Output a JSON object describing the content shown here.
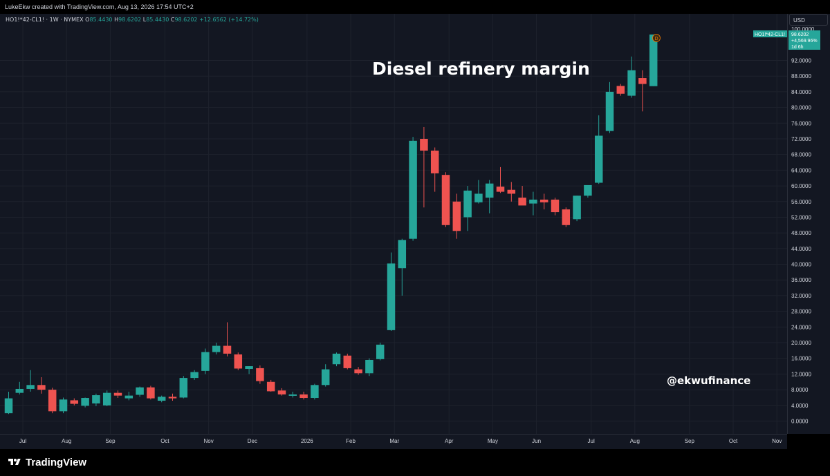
{
  "header": {
    "attribution": "LukeEkw created with TradingView.com, Aug 13, 2026 17:54 UTC+2"
  },
  "legend": {
    "symbol": "HO1!*42-CL1! · 1W · NYMEX",
    "o_label": "O",
    "o_value": "85.4430",
    "h_label": "H",
    "h_value": "98.6202",
    "l_label": "L",
    "l_value": "85.4430",
    "c_label": "C",
    "c_value": "98.6202",
    "change": "+12.6562 (+14.72%)"
  },
  "price_scale": {
    "currency": "USD",
    "last_symbol": "HO1!*42-CL1!",
    "last_price": "98.6202",
    "last_change": "+4,569.96%",
    "countdown": "1d 6h"
  },
  "annotations": {
    "title": "Diesel refinery margin",
    "handle": "@ekwufinance",
    "dividend_marker": "D"
  },
  "footer": {
    "brand": "TradingView"
  },
  "colors": {
    "up": "#26a69a",
    "down": "#ef5350",
    "background": "#131722",
    "grid": "#1e222d"
  },
  "chart_data": {
    "type": "candlestick",
    "title": "Diesel refinery margin",
    "interval": "1W",
    "ylim": [
      -1,
      100
    ],
    "y_ticks": [
      0,
      4,
      8,
      12,
      16,
      20,
      24,
      28,
      32,
      36,
      40,
      44,
      48,
      52,
      56,
      60,
      64,
      68,
      72,
      76,
      80,
      84,
      88,
      92,
      100
    ],
    "y_tick_labels": [
      "0.0000",
      "4.0000",
      "8.0000",
      "12.0000",
      "16.0000",
      "20.0000",
      "24.0000",
      "28.0000",
      "32.0000",
      "36.0000",
      "40.0000",
      "44.0000",
      "48.0000",
      "52.0000",
      "56.0000",
      "60.0000",
      "64.0000",
      "68.0000",
      "72.0000",
      "76.0000",
      "80.0000",
      "84.0000",
      "88.0000",
      "92.0000",
      "100.0000"
    ],
    "x_ticks": [
      {
        "label": "Jul",
        "index": 1.3
      },
      {
        "label": "Aug",
        "index": 5.3
      },
      {
        "label": "Sep",
        "index": 9.3
      },
      {
        "label": "Oct",
        "index": 14.3
      },
      {
        "label": "Nov",
        "index": 18.3
      },
      {
        "label": "Dec",
        "index": 22.3
      },
      {
        "label": "2026",
        "index": 27.3
      },
      {
        "label": "Feb",
        "index": 31.3
      },
      {
        "label": "Mar",
        "index": 35.3
      },
      {
        "label": "Apr",
        "index": 40.3
      },
      {
        "label": "May",
        "index": 44.3
      },
      {
        "label": "Jun",
        "index": 48.3
      },
      {
        "label": "Jul",
        "index": 53.3
      },
      {
        "label": "Aug",
        "index": 57.3
      },
      {
        "label": "Sep",
        "index": 62.3
      },
      {
        "label": "Oct",
        "index": 66.3
      },
      {
        "label": "Nov",
        "index": 70.3
      }
    ],
    "candles": [
      {
        "o": 2.0,
        "h": 7.5,
        "l": 1.8,
        "c": 5.8
      },
      {
        "o": 7.2,
        "h": 10.0,
        "l": 6.8,
        "c": 8.2
      },
      {
        "o": 8.2,
        "h": 13.0,
        "l": 7.5,
        "c": 9.2
      },
      {
        "o": 9.2,
        "h": 11.2,
        "l": 7.0,
        "c": 8.0
      },
      {
        "o": 8.0,
        "h": 8.5,
        "l": 2.0,
        "c": 2.5
      },
      {
        "o": 2.5,
        "h": 6.0,
        "l": 2.0,
        "c": 5.5
      },
      {
        "o": 5.3,
        "h": 5.8,
        "l": 4.0,
        "c": 4.4
      },
      {
        "o": 3.9,
        "h": 6.0,
        "l": 3.5,
        "c": 5.9
      },
      {
        "o": 4.5,
        "h": 7.0,
        "l": 3.8,
        "c": 6.6
      },
      {
        "o": 4.0,
        "h": 7.8,
        "l": 3.8,
        "c": 7.2
      },
      {
        "o": 7.2,
        "h": 7.8,
        "l": 5.9,
        "c": 6.5
      },
      {
        "o": 5.8,
        "h": 7.5,
        "l": 5.3,
        "c": 6.5
      },
      {
        "o": 6.7,
        "h": 8.8,
        "l": 6.2,
        "c": 8.6
      },
      {
        "o": 8.6,
        "h": 9.0,
        "l": 5.5,
        "c": 5.8
      },
      {
        "o": 5.2,
        "h": 6.5,
        "l": 4.8,
        "c": 6.2
      },
      {
        "o": 6.2,
        "h": 7.0,
        "l": 5.2,
        "c": 5.8
      },
      {
        "o": 6.0,
        "h": 11.5,
        "l": 5.8,
        "c": 11.0
      },
      {
        "o": 11.0,
        "h": 13.0,
        "l": 10.5,
        "c": 12.5
      },
      {
        "o": 12.8,
        "h": 18.5,
        "l": 12.0,
        "c": 17.6
      },
      {
        "o": 17.6,
        "h": 20.0,
        "l": 17.0,
        "c": 19.2
      },
      {
        "o": 19.2,
        "h": 25.2,
        "l": 16.5,
        "c": 17.2
      },
      {
        "o": 17.0,
        "h": 17.5,
        "l": 13.0,
        "c": 13.4
      },
      {
        "o": 13.3,
        "h": 14.0,
        "l": 12.0,
        "c": 14.0
      },
      {
        "o": 13.5,
        "h": 14.2,
        "l": 9.5,
        "c": 10.2
      },
      {
        "o": 10.0,
        "h": 10.5,
        "l": 7.5,
        "c": 7.6
      },
      {
        "o": 7.8,
        "h": 8.4,
        "l": 6.5,
        "c": 6.8
      },
      {
        "o": 6.8,
        "h": 7.5,
        "l": 6.0,
        "c": 6.8
      },
      {
        "o": 6.8,
        "h": 7.5,
        "l": 5.5,
        "c": 5.9
      },
      {
        "o": 5.9,
        "h": 9.5,
        "l": 5.5,
        "c": 9.2
      },
      {
        "o": 9.2,
        "h": 14.5,
        "l": 8.8,
        "c": 13.2
      },
      {
        "o": 14.5,
        "h": 17.5,
        "l": 14.0,
        "c": 17.2
      },
      {
        "o": 16.7,
        "h": 17.2,
        "l": 13.2,
        "c": 13.5
      },
      {
        "o": 13.2,
        "h": 13.8,
        "l": 11.8,
        "c": 12.2
      },
      {
        "o": 12.2,
        "h": 16.0,
        "l": 11.5,
        "c": 15.6
      },
      {
        "o": 15.8,
        "h": 20.0,
        "l": 15.5,
        "c": 19.5
      },
      {
        "o": 23.2,
        "h": 43.0,
        "l": 23.0,
        "c": 40.2
      },
      {
        "o": 39.0,
        "h": 46.5,
        "l": 32.0,
        "c": 46.2
      },
      {
        "o": 46.5,
        "h": 72.5,
        "l": 46.0,
        "c": 71.5
      },
      {
        "o": 72.0,
        "h": 75.0,
        "l": 54.5,
        "c": 69.0
      },
      {
        "o": 69.0,
        "h": 69.8,
        "l": 58.5,
        "c": 63.2
      },
      {
        "o": 62.8,
        "h": 63.5,
        "l": 49.5,
        "c": 50.0
      },
      {
        "o": 56.0,
        "h": 58.0,
        "l": 46.5,
        "c": 48.5
      },
      {
        "o": 52.0,
        "h": 60.0,
        "l": 48.5,
        "c": 58.8
      },
      {
        "o": 55.8,
        "h": 61.5,
        "l": 55.5,
        "c": 58.0
      },
      {
        "o": 57.0,
        "h": 61.5,
        "l": 53.0,
        "c": 60.6
      },
      {
        "o": 59.8,
        "h": 64.8,
        "l": 58.2,
        "c": 58.5
      },
      {
        "o": 59.0,
        "h": 61.0,
        "l": 56.0,
        "c": 58.0
      },
      {
        "o": 57.0,
        "h": 60.0,
        "l": 55.5,
        "c": 55.0
      },
      {
        "o": 55.5,
        "h": 58.5,
        "l": 52.5,
        "c": 56.5
      },
      {
        "o": 56.5,
        "h": 58.0,
        "l": 54.0,
        "c": 55.8
      },
      {
        "o": 56.5,
        "h": 57.0,
        "l": 52.5,
        "c": 53.3
      },
      {
        "o": 54.0,
        "h": 54.5,
        "l": 49.5,
        "c": 50.0
      },
      {
        "o": 51.5,
        "h": 57.5,
        "l": 51.0,
        "c": 57.5
      },
      {
        "o": 57.5,
        "h": 60.0,
        "l": 57.0,
        "c": 60.2
      },
      {
        "o": 60.8,
        "h": 78.0,
        "l": 60.5,
        "c": 72.8
      },
      {
        "o": 74.0,
        "h": 86.5,
        "l": 73.5,
        "c": 84.0
      },
      {
        "o": 85.5,
        "h": 86.0,
        "l": 83.0,
        "c": 83.5
      },
      {
        "o": 83.0,
        "h": 93.0,
        "l": 82.5,
        "c": 89.5
      },
      {
        "o": 87.5,
        "h": 89.5,
        "l": 79.0,
        "c": 86.0
      },
      {
        "o": 85.443,
        "h": 98.6202,
        "l": 85.443,
        "c": 98.6202
      }
    ]
  }
}
